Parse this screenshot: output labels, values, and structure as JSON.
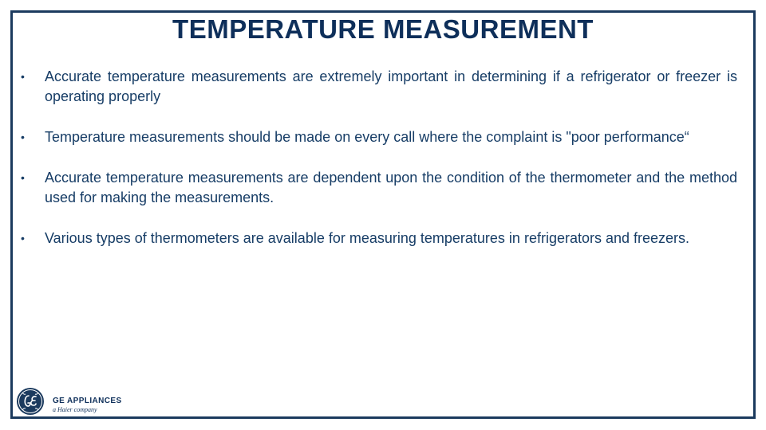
{
  "slide": {
    "title": "TEMPERATURE MEASUREMENT",
    "bullet_marker": "•",
    "bullets": [
      "Accurate temperature measurements are extremely important in determining if a refrigerator or freezer is operating properly",
      "Temperature measurements should be made on every call where the complaint is \"poor performance“",
      "Accurate temperature measurements are dependent upon the condition of the thermometer and the method used for making the measurements.",
      "Various types of thermometers are available for measuring temperatures in refrigerators and freezers."
    ]
  },
  "footer": {
    "logo_icon": "ge-monogram-icon",
    "brand_name": "GE APPLIANCES",
    "brand_tagline": "a Haier company"
  },
  "colors": {
    "frame": "#1b3a5e",
    "title": "#0e2f5a",
    "text": "#173d66"
  }
}
